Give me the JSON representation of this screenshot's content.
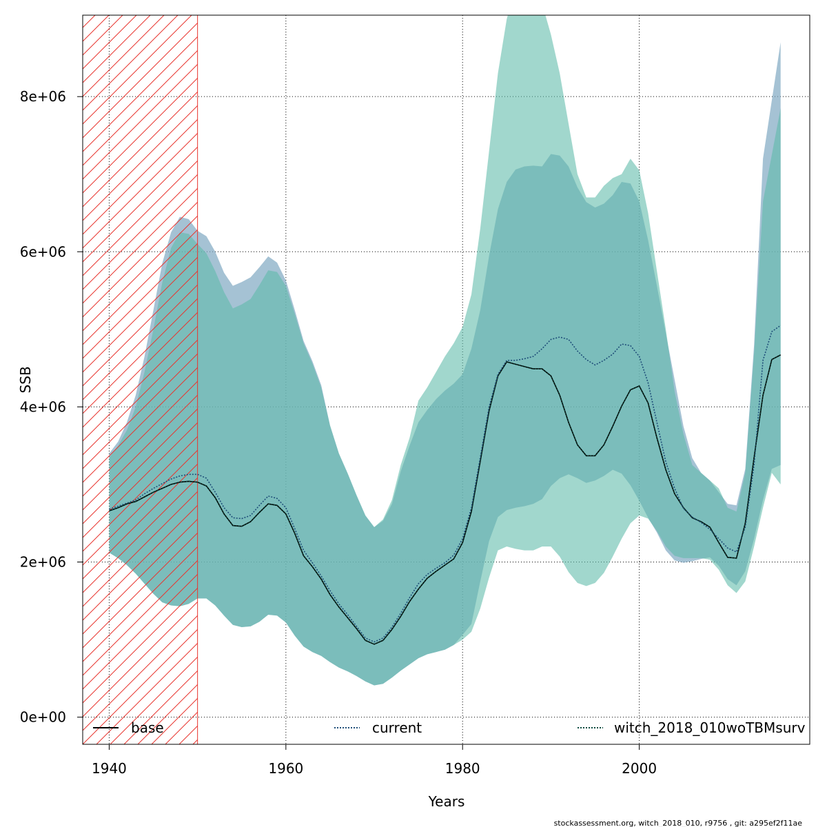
{
  "chart_data": {
    "type": "area",
    "xlabel": "Years",
    "ylabel": "SSB",
    "xlim": [
      1937,
      2019.3
    ],
    "ylim": [
      -350000,
      9050000
    ],
    "x_ticks": [
      1940,
      1960,
      1980,
      2000
    ],
    "x_tick_labels": [
      "1940",
      "1960",
      "1980",
      "2000"
    ],
    "y_ticks": [
      0,
      2000000,
      4000000,
      6000000,
      8000000
    ],
    "y_tick_labels": [
      "0e+00",
      "2e+06",
      "4e+06",
      "6e+06",
      "8e+06"
    ],
    "grid": true,
    "shaded_period": [
      1937,
      1950
    ],
    "legend_position": "bottom",
    "legend": [
      {
        "label": "base",
        "line": "solid",
        "color": "#000000"
      },
      {
        "label": "current",
        "line": "dotted",
        "color": "#1f4e79"
      },
      {
        "label": "witch_2018_010woTBMsurv",
        "line": "dotted",
        "color": "#0b4a3e"
      }
    ],
    "x": [
      1940,
      1941,
      1942,
      1943,
      1944,
      1945,
      1946,
      1947,
      1948,
      1949,
      1950,
      1951,
      1952,
      1953,
      1954,
      1955,
      1956,
      1957,
      1958,
      1959,
      1960,
      1961,
      1962,
      1963,
      1964,
      1965,
      1966,
      1967,
      1968,
      1969,
      1970,
      1971,
      1972,
      1973,
      1974,
      1975,
      1976,
      1977,
      1978,
      1979,
      1980,
      1981,
      1982,
      1983,
      1984,
      1985,
      1986,
      1987,
      1988,
      1989,
      1990,
      1991,
      1992,
      1993,
      1994,
      1995,
      1996,
      1997,
      1998,
      1999,
      2000,
      2001,
      2002,
      2003,
      2004,
      2005,
      2006,
      2007,
      2008,
      2009,
      2010,
      2011,
      2012,
      2013,
      2014,
      2015,
      2016
    ],
    "series": [
      {
        "name": "base",
        "color": "#7fa8c2",
        "line": "solid",
        "values": [
          2660000,
          2700000,
          2750000,
          2780000,
          2840000,
          2900000,
          2950000,
          3000000,
          3030000,
          3040000,
          3030000,
          2980000,
          2830000,
          2620000,
          2470000,
          2460000,
          2520000,
          2640000,
          2750000,
          2730000,
          2620000,
          2370000,
          2080000,
          1940000,
          1780000,
          1580000,
          1420000,
          1280000,
          1140000,
          990000,
          940000,
          990000,
          1130000,
          1300000,
          1490000,
          1650000,
          1790000,
          1880000,
          1960000,
          2040000,
          2250000,
          2650000,
          3300000,
          3950000,
          4400000,
          4580000,
          4550000,
          4520000,
          4490000,
          4490000,
          4400000,
          4150000,
          3800000,
          3510000,
          3370000,
          3370000,
          3510000,
          3750000,
          4010000,
          4220000,
          4270000,
          4050000,
          3600000,
          3190000,
          2880000,
          2700000,
          2570000,
          2520000,
          2450000,
          2250000,
          2060000,
          2050000,
          2500000,
          3350000,
          4150000,
          4610000,
          4670000
        ],
        "lower": [
          2120000,
          2050000,
          1960000,
          1850000,
          1720000,
          1590000,
          1480000,
          1440000,
          1430000,
          1460000,
          1530000,
          1530000,
          1440000,
          1310000,
          1190000,
          1160000,
          1170000,
          1230000,
          1320000,
          1310000,
          1220000,
          1050000,
          910000,
          840000,
          790000,
          710000,
          640000,
          590000,
          530000,
          460000,
          410000,
          430000,
          510000,
          600000,
          680000,
          760000,
          810000,
          840000,
          870000,
          930000,
          1060000,
          1200000,
          1750000,
          2270000,
          2580000,
          2670000,
          2700000,
          2720000,
          2750000,
          2810000,
          2980000,
          3080000,
          3130000,
          3080000,
          3020000,
          3050000,
          3110000,
          3190000,
          3140000,
          2990000,
          2790000,
          2570000,
          2380000,
          2150000,
          2020000,
          1990000,
          2010000,
          2040000,
          2060000,
          1950000,
          1780000,
          1700000,
          1880000,
          2300000,
          2800000,
          3200000,
          3250000
        ],
        "upper": [
          3400000,
          3550000,
          3800000,
          4150000,
          4650000,
          5250000,
          5850000,
          6250000,
          6450000,
          6420000,
          6270000,
          6200000,
          6000000,
          5730000,
          5560000,
          5610000,
          5670000,
          5800000,
          5940000,
          5860000,
          5630000,
          5250000,
          4850000,
          4590000,
          4280000,
          3760000,
          3400000,
          3140000,
          2860000,
          2600000,
          2450000,
          2530000,
          2750000,
          3170000,
          3500000,
          3800000,
          3960000,
          4100000,
          4210000,
          4300000,
          4420000,
          4750000,
          5250000,
          5950000,
          6550000,
          6900000,
          7060000,
          7100000,
          7110000,
          7100000,
          7260000,
          7240000,
          7100000,
          6830000,
          6640000,
          6570000,
          6620000,
          6730000,
          6900000,
          6880000,
          6650000,
          6150000,
          5560000,
          4950000,
          4350000,
          3750000,
          3340000,
          3150000,
          3050000,
          2900000,
          2750000,
          2730000,
          3200000,
          4800000,
          7200000,
          7950000,
          8700000
        ]
      },
      {
        "name": "current",
        "color": "#1f4e79",
        "line": "dotted",
        "values": [
          2680000,
          2720000,
          2760000,
          2800000,
          2880000,
          2950000,
          3010000,
          3070000,
          3110000,
          3130000,
          3130000,
          3080000,
          2900000,
          2700000,
          2570000,
          2560000,
          2600000,
          2730000,
          2850000,
          2820000,
          2700000,
          2430000,
          2150000,
          1990000,
          1820000,
          1630000,
          1460000,
          1320000,
          1170000,
          1020000,
          970000,
          1020000,
          1160000,
          1340000,
          1540000,
          1720000,
          1840000,
          1920000,
          1990000,
          2090000,
          2300000,
          2700000,
          3350000,
          4000000,
          4420000,
          4600000,
          4600000,
          4620000,
          4650000,
          4750000,
          4870000,
          4900000,
          4870000,
          4720000,
          4610000,
          4540000,
          4600000,
          4680000,
          4810000,
          4790000,
          4650000,
          4310000,
          3800000,
          3290000,
          2950000,
          2690000,
          2580000,
          2510000,
          2420000,
          2300000,
          2180000,
          2130000,
          2450000,
          3250000,
          4600000,
          4970000,
          5050000
        ],
        "lower": [],
        "upper": []
      },
      {
        "name": "witch_2018_010woTBMsurv",
        "color": "#5dbaa8",
        "line": "dotted",
        "values": [
          2660000,
          2700000,
          2750000,
          2780000,
          2840000,
          2900000,
          2950000,
          3000000,
          3030000,
          3040000,
          3030000,
          2980000,
          2830000,
          2620000,
          2470000,
          2460000,
          2520000,
          2640000,
          2750000,
          2730000,
          2620000,
          2370000,
          2080000,
          1940000,
          1780000,
          1580000,
          1420000,
          1280000,
          1140000,
          990000,
          940000,
          990000,
          1130000,
          1300000,
          1490000,
          1650000,
          1790000,
          1880000,
          1960000,
          2040000,
          2250000,
          2650000,
          3300000,
          3950000,
          4400000,
          4580000,
          4550000,
          4520000,
          4490000,
          4490000,
          4400000,
          4150000,
          3800000,
          3510000,
          3370000,
          3370000,
          3510000,
          3750000,
          4010000,
          4220000,
          4270000,
          4050000,
          3600000,
          3190000,
          2880000,
          2700000,
          2570000,
          2520000,
          2450000,
          2250000,
          2060000,
          2050000,
          2500000,
          3350000,
          4150000,
          4610000,
          4670000
        ],
        "lower": [
          2120000,
          2050000,
          1960000,
          1850000,
          1720000,
          1590000,
          1480000,
          1440000,
          1430000,
          1460000,
          1530000,
          1530000,
          1440000,
          1310000,
          1190000,
          1160000,
          1170000,
          1230000,
          1320000,
          1310000,
          1220000,
          1050000,
          910000,
          840000,
          790000,
          710000,
          640000,
          590000,
          530000,
          460000,
          410000,
          430000,
          510000,
          600000,
          680000,
          760000,
          810000,
          840000,
          870000,
          930000,
          1000000,
          1100000,
          1400000,
          1800000,
          2150000,
          2200000,
          2170000,
          2150000,
          2150000,
          2200000,
          2200000,
          2070000,
          1870000,
          1730000,
          1690000,
          1730000,
          1860000,
          2070000,
          2300000,
          2500000,
          2600000,
          2560000,
          2400000,
          2200000,
          2080000,
          2050000,
          2050000,
          2050000,
          2030000,
          1900000,
          1700000,
          1600000,
          1750000,
          2200000,
          2700000,
          3150000,
          3000000
        ],
        "upper": [
          3350000,
          3500000,
          3700000,
          4000000,
          4450000,
          5000000,
          5600000,
          6050000,
          6250000,
          6230000,
          6100000,
          5980000,
          5750000,
          5480000,
          5270000,
          5320000,
          5390000,
          5570000,
          5760000,
          5740000,
          5560000,
          5200000,
          4820000,
          4560000,
          4250000,
          3760000,
          3400000,
          3140000,
          2860000,
          2600000,
          2450000,
          2550000,
          2800000,
          3250000,
          3600000,
          4080000,
          4250000,
          4450000,
          4650000,
          4820000,
          5030000,
          5450000,
          6300000,
          7300000,
          8300000,
          9000000,
          9400000,
          9500000,
          9400000,
          9200000,
          8800000,
          8300000,
          7650000,
          7000000,
          6700000,
          6700000,
          6850000,
          6950000,
          7000000,
          7200000,
          7050000,
          6500000,
          5750000,
          5000000,
          4200000,
          3650000,
          3250000,
          3150000,
          3050000,
          2950000,
          2700000,
          2650000,
          3150000,
          4700000,
          6650000,
          7250000,
          7850000
        ]
      }
    ],
    "footer": "stockassessment.org, witch_2018_010, r9756 , git: a295ef2f11ae"
  }
}
